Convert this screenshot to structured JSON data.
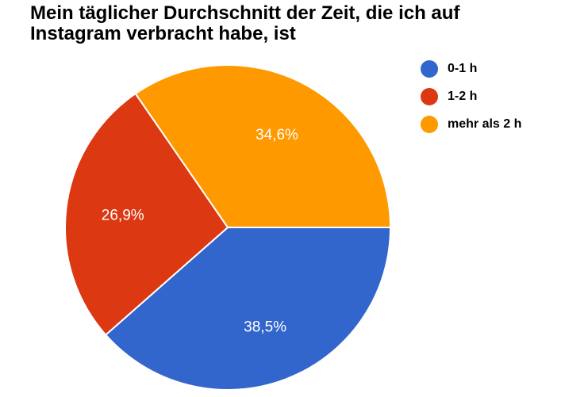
{
  "chart_data": {
    "type": "pie",
    "title": "Mein täglicher Durchschnitt der Zeit, die ich auf Instagram verbracht habe, ist",
    "legend_position": "right",
    "slices": [
      {
        "label": "0-1 h",
        "value": 38.5,
        "value_label": "38,5%",
        "color": "#3366cc"
      },
      {
        "label": "1-2 h",
        "value": 26.9,
        "value_label": "26,9%",
        "color": "#dc3912"
      },
      {
        "label": "mehr als 2 h",
        "value": 34.6,
        "value_label": "34,6%",
        "color": "#ff9900"
      }
    ]
  }
}
